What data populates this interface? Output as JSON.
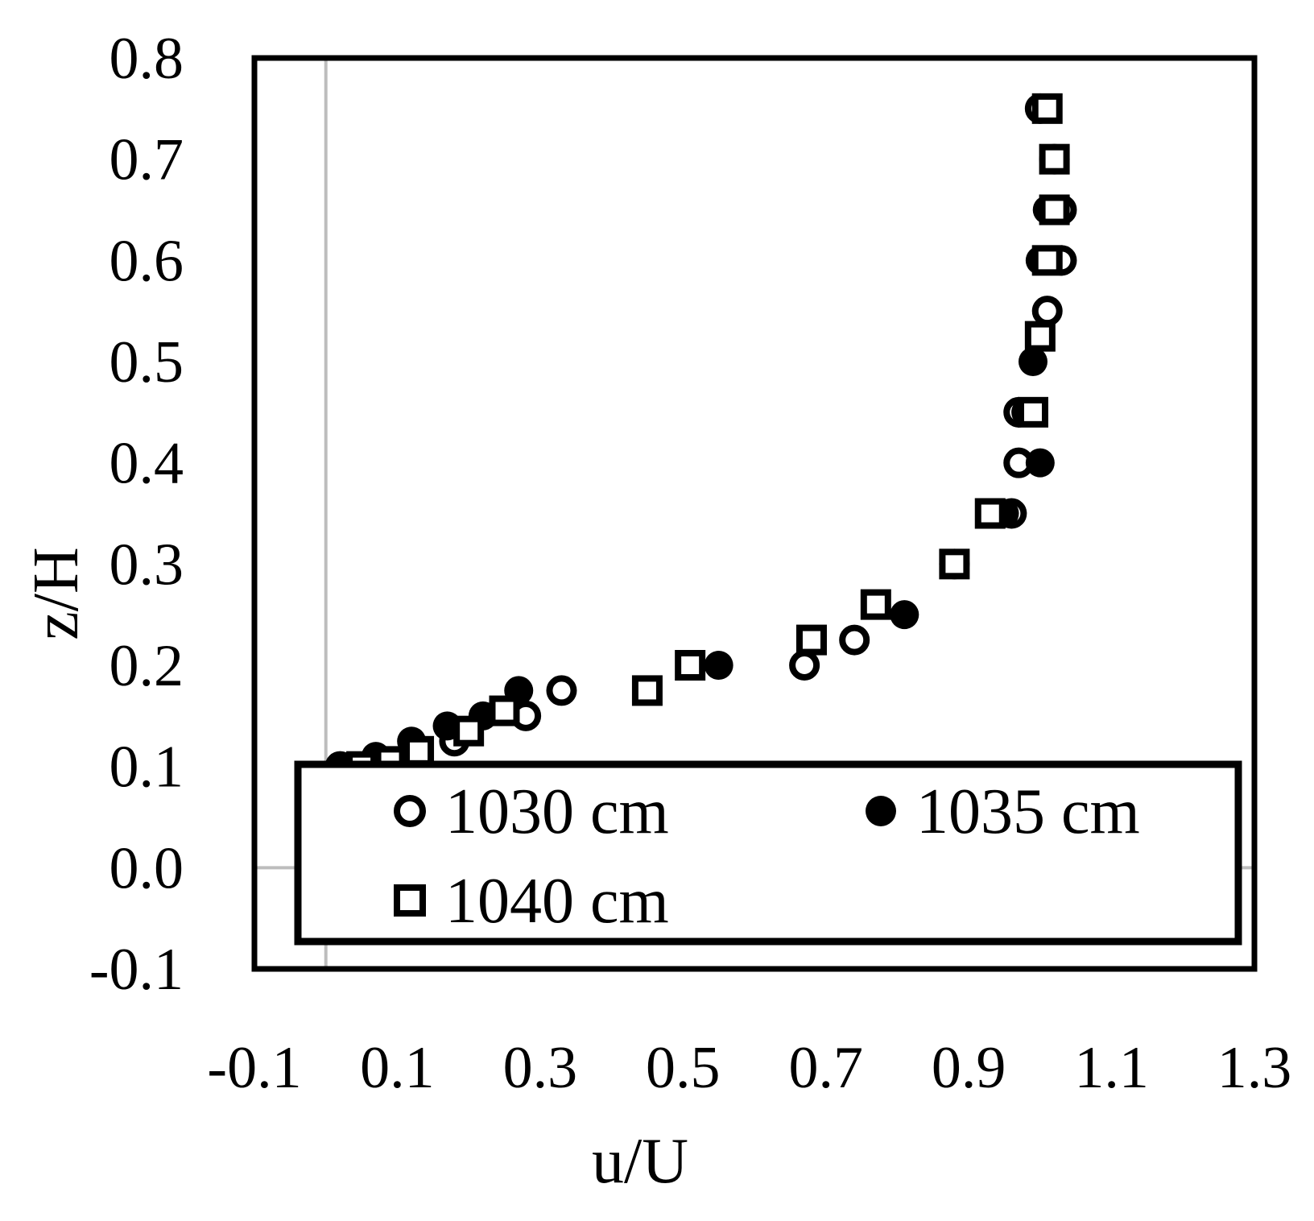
{
  "chart_data": {
    "type": "scatter",
    "xlabel": "u/U",
    "ylabel": "z/H",
    "xlim": [
      -0.1,
      1.3
    ],
    "ylim": [
      -0.1,
      0.8
    ],
    "xticks": [
      "-0.1",
      "0.1",
      "0.3",
      "0.5",
      "0.7",
      "0.9",
      "1.1",
      "1.3"
    ],
    "yticks": [
      "0.8",
      "0.7",
      "0.6",
      "0.5",
      "0.4",
      "0.3",
      "0.2",
      "0.1",
      "0.0",
      "-0.1"
    ],
    "grid": false,
    "legend_position": "bottom",
    "series": [
      {
        "name": "1030 cm",
        "marker": "open-circle",
        "points": [
          [
            0.02,
            0.1
          ],
          [
            0.08,
            0.105
          ],
          [
            0.13,
            0.11
          ],
          [
            0.18,
            0.125
          ],
          [
            0.28,
            0.15
          ],
          [
            0.33,
            0.175
          ],
          [
            0.67,
            0.2
          ],
          [
            0.74,
            0.225
          ],
          [
            0.88,
            0.3
          ],
          [
            0.96,
            0.35
          ],
          [
            0.97,
            0.4
          ],
          [
            0.97,
            0.45
          ],
          [
            1.01,
            0.55
          ],
          [
            1.03,
            0.6
          ],
          [
            1.03,
            0.65
          ],
          [
            1.02,
            0.7
          ],
          [
            1.0,
            0.75
          ]
        ]
      },
      {
        "name": "1035 cm",
        "marker": "filled-circle",
        "points": [
          [
            0.02,
            0.1
          ],
          [
            0.07,
            0.11
          ],
          [
            0.12,
            0.125
          ],
          [
            0.17,
            0.14
          ],
          [
            0.22,
            0.15
          ],
          [
            0.27,
            0.175
          ],
          [
            0.55,
            0.2
          ],
          [
            0.81,
            0.25
          ],
          [
            0.88,
            0.3
          ],
          [
            0.95,
            0.35
          ],
          [
            1.0,
            0.4
          ],
          [
            0.98,
            0.45
          ],
          [
            0.99,
            0.5
          ],
          [
            1.0,
            0.6
          ],
          [
            1.01,
            0.65
          ],
          [
            1.02,
            0.7
          ],
          [
            1.01,
            0.75
          ]
        ]
      },
      {
        "name": "1040 cm",
        "marker": "open-square",
        "points": [
          [
            0.05,
            0.1
          ],
          [
            0.09,
            0.105
          ],
          [
            0.13,
            0.115
          ],
          [
            0.2,
            0.135
          ],
          [
            0.25,
            0.155
          ],
          [
            0.45,
            0.175
          ],
          [
            0.51,
            0.2
          ],
          [
            0.68,
            0.225
          ],
          [
            0.77,
            0.26
          ],
          [
            0.88,
            0.3
          ],
          [
            0.93,
            0.35
          ],
          [
            0.99,
            0.45
          ],
          [
            1.0,
            0.525
          ],
          [
            1.01,
            0.6
          ],
          [
            1.02,
            0.65
          ],
          [
            1.02,
            0.7
          ],
          [
            1.01,
            0.75
          ]
        ]
      }
    ]
  }
}
